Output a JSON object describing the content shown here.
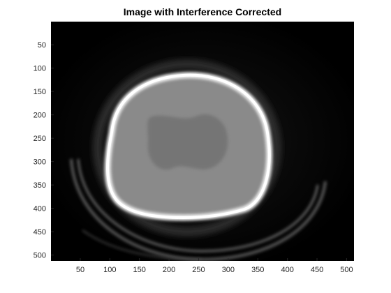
{
  "figure": {
    "title": "Image with Interference Corrected"
  },
  "axes": {
    "x_ticks": [
      50,
      100,
      150,
      200,
      250,
      300,
      350,
      400,
      450,
      500
    ],
    "y_ticks": [
      50,
      100,
      150,
      200,
      250,
      300,
      350,
      400,
      450,
      500
    ],
    "x_range": [
      1,
      512
    ],
    "y_range": [
      1,
      512
    ]
  },
  "image": {
    "description_type": "grayscale axial CT brain slice",
    "colors": {
      "background": "#000000",
      "skull": "#ffffff",
      "brain": "#8a8a8a",
      "brain_dark_region": "#6f6f6f",
      "ring_artifact": "#7a7a7a"
    }
  }
}
